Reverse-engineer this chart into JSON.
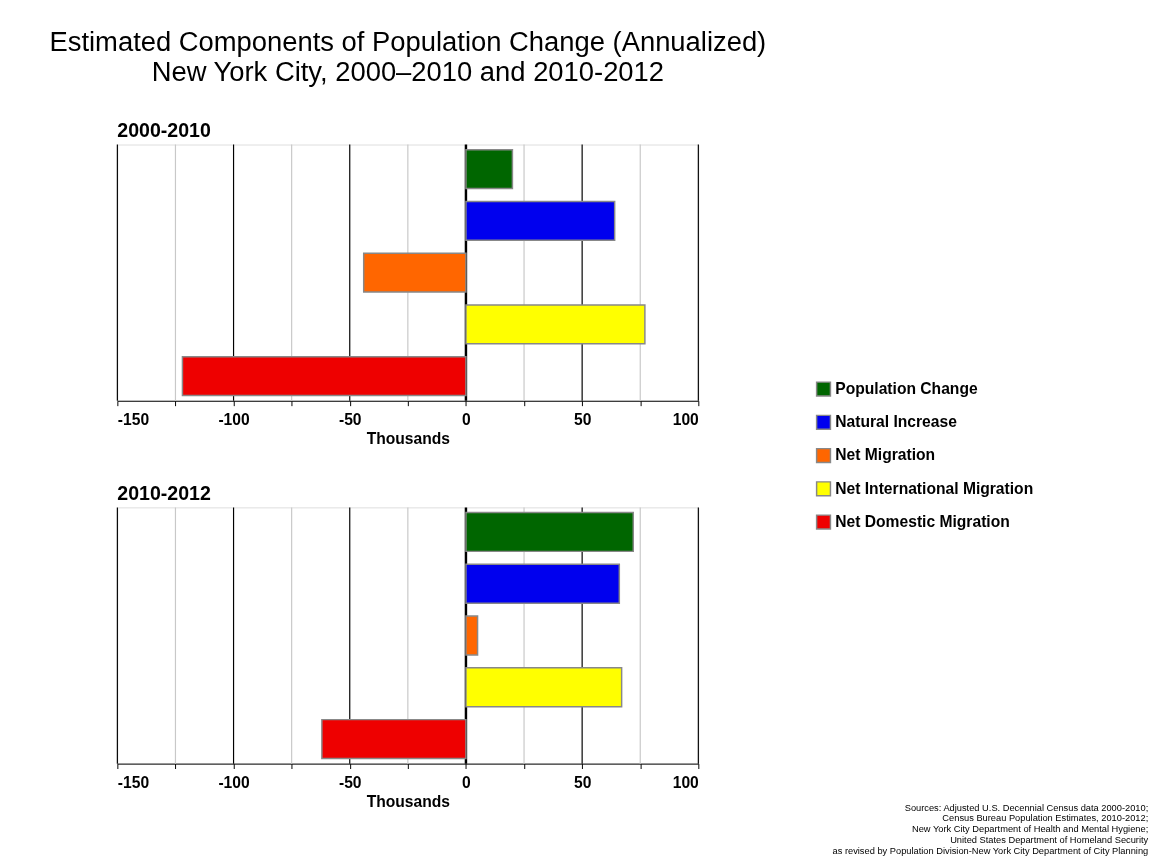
{
  "chart_data": [
    {
      "type": "bar",
      "orientation": "horizontal",
      "title": "Estimated Components of Population Change (Annualized)",
      "subtitle": "New York City, 2000–2010 and 2010-2012",
      "annotations": [
        "2000-2010"
      ],
      "xlabel": "Thousands",
      "categories": [
        null
      ],
      "series": [
        {
          "name": "Population Change",
          "color": "#006600",
          "values": [
            20
          ]
        },
        {
          "name": "Natural Increase",
          "color": "#0000ee",
          "values": [
            64
          ]
        },
        {
          "name": "Net Migration",
          "color": "#ff6600",
          "values": [
            -44
          ]
        },
        {
          "name": "Net International Migration",
          "color": "#ffff00",
          "values": [
            77
          ]
        },
        {
          "name": "Net Domestic Migration",
          "color": "#ee0000",
          "values": [
            -122
          ]
        }
      ],
      "xlim": [
        -150,
        100
      ],
      "xticks": [
        -150,
        {
          "value": -125,
          "label": null
        },
        -100,
        {
          "value": -75,
          "label": null
        },
        -50,
        {
          "value": -25,
          "label": null
        },
        0,
        {
          "value": 25,
          "label": null
        },
        50,
        {
          "value": 75,
          "label": null
        },
        100
      ],
      "grid": "x",
      "legend": "right"
    },
    {
      "type": "bar",
      "orientation": "horizontal",
      "annotations": [
        "2010-2012",
        "Sources: Adjusted U.S. Decennial Census data 2000-2010;\nCensus Bureau Population Estimates,  2010-2012;\nNew York City Department of Health and Mental Hygiene;\nUnited States Department of Homeland Security\nas revised by Population Division-New York City Department of City Planning"
      ],
      "xlabel": "Thousands",
      "categories": [
        null
      ],
      "series": [
        {
          "color": "#006600",
          "values": [
            72
          ]
        },
        {
          "color": "#0000ee",
          "values": [
            66
          ]
        },
        {
          "color": "#ff6600",
          "values": [
            5
          ]
        },
        {
          "color": "#ffff00",
          "values": [
            67
          ]
        },
        {
          "color": "#ee0000",
          "values": [
            -62
          ]
        }
      ],
      "xlim": [
        -150,
        100
      ],
      "xticks": [
        -150,
        {
          "value": -125,
          "label": null
        },
        -100,
        {
          "value": -75,
          "label": null
        },
        -50,
        {
          "value": -25,
          "label": null
        },
        0,
        {
          "value": 25,
          "label": null
        },
        50,
        {
          "value": 75,
          "label": null
        },
        100
      ],
      "grid": "x"
    }
  ]
}
